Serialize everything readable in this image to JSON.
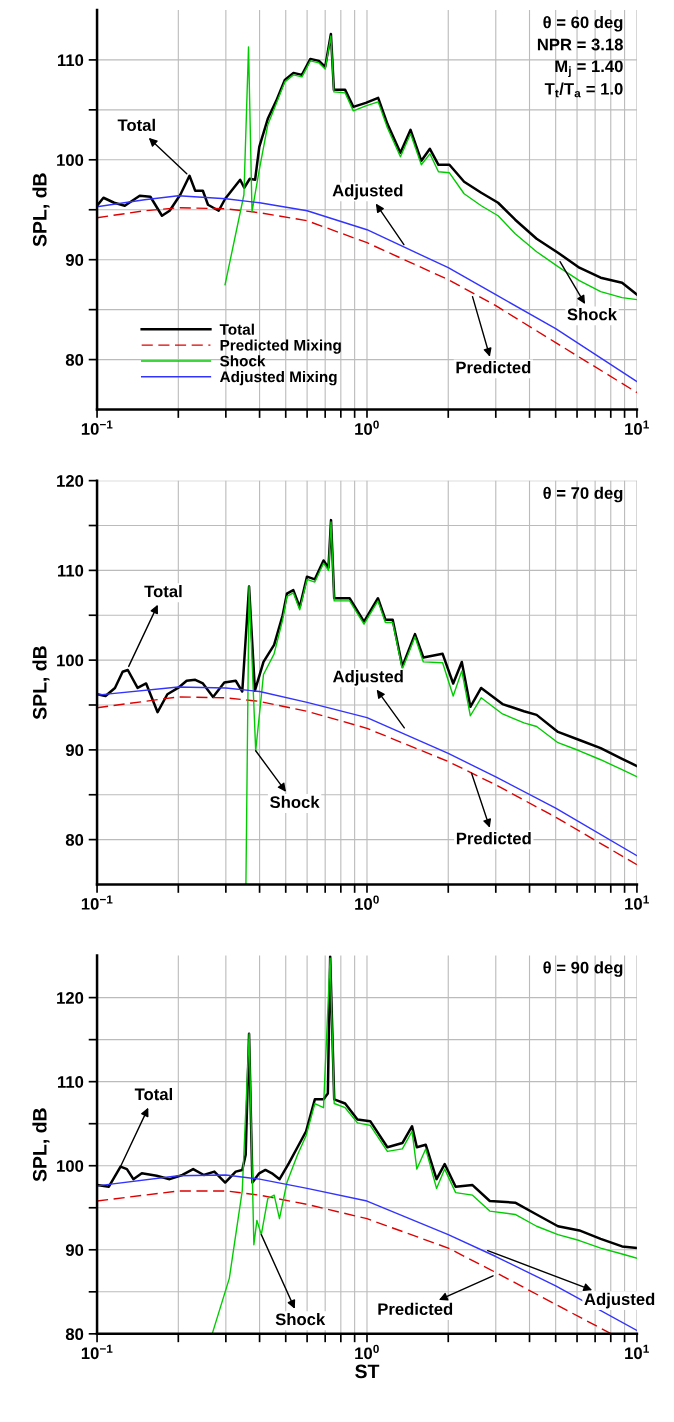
{
  "chart_data": [
    {
      "type": "line",
      "ylabel": "SPL, dB",
      "xlim": [
        0.1,
        10
      ],
      "ylim": [
        75,
        115
      ],
      "log": "x",
      "grid": true,
      "legend": "bottom left",
      "xticks": [
        {
          "value": 0.1,
          "label": "10$^{−1}$"
        },
        {
          "value": 0.2,
          "label": null
        },
        {
          "value": 0.3,
          "label": null
        },
        {
          "value": 0.4,
          "label": null
        },
        {
          "value": 0.5,
          "label": null
        },
        {
          "value": 0.6,
          "label": null
        },
        {
          "value": 0.7,
          "label": null
        },
        {
          "value": 0.8,
          "label": null
        },
        {
          "value": 0.9,
          "label": null
        },
        {
          "value": 1,
          "label": "10$^{0}$"
        },
        {
          "value": 2,
          "label": null
        },
        {
          "value": 3,
          "label": null
        },
        {
          "value": 4,
          "label": null
        },
        {
          "value": 5,
          "label": null
        },
        {
          "value": 6,
          "label": null
        },
        {
          "value": 7,
          "label": null
        },
        {
          "value": 8,
          "label": null
        },
        {
          "value": 9,
          "label": null
        },
        {
          "value": 10,
          "label": "10$^{1}$"
        }
      ],
      "yticks": [
        80,
        {
          "value": 85,
          "label": null
        },
        90,
        {
          "value": 95,
          "label": null
        },
        100,
        {
          "value": 105,
          "label": null
        },
        110
      ],
      "series": [
        {
          "name": "Total",
          "color": "#000000",
          "line_style": "solid",
          "x": [
            0.1,
            0.1056,
            0.1157,
            0.1267,
            0.1439,
            0.1576,
            0.174,
            0.1857,
            0.2034,
            0.22,
            0.231,
            0.2466,
            0.2576,
            0.2822,
            0.2983,
            0.3148,
            0.339,
            0.3509,
            0.368,
            0.385,
            0.399,
            0.429,
            0.461,
            0.496,
            0.534,
            0.574,
            0.617,
            0.664,
            0.7,
            0.735,
            0.754,
            0.83,
            0.89,
            0.99,
            1.1,
            1.19,
            1.33,
            1.45,
            1.59,
            1.71,
            1.84,
            2.02,
            2.29,
            2.65,
            3.06,
            3.54,
            4.25,
            5.1,
            6.12,
            7.34,
            8.81,
            10
          ],
          "values": [
            95.4,
            96.2,
            95.7,
            95.4,
            96.4,
            96.3,
            94.4,
            94.9,
            96.5,
            98.4,
            96.9,
            96.9,
            95.5,
            94.9,
            96.1,
            96.9,
            98.0,
            97.2,
            98.1,
            98.0,
            101.3,
            104.1,
            105.9,
            108.0,
            108.7,
            108.5,
            110.1,
            109.9,
            109.3,
            112.6,
            107.0,
            107.0,
            105.3,
            105.7,
            106.2,
            103.6,
            100.7,
            103.0,
            99.9,
            101.1,
            99.5,
            99.5,
            97.8,
            96.7,
            95.7,
            94.0,
            92.1,
            90.7,
            89.2,
            88.2,
            87.7,
            86.5
          ]
        },
        {
          "name": "Predicted Mixing",
          "color": "#dd0000",
          "line_style": "dashed",
          "x": [
            0.1,
            0.15,
            0.2,
            0.3,
            0.4,
            0.6,
            1,
            2,
            3,
            5,
            10
          ],
          "values": [
            94.2,
            94.9,
            95.2,
            95.1,
            94.7,
            93.9,
            91.7,
            88.0,
            85.4,
            81.7,
            76.7
          ]
        },
        {
          "name": "Shock",
          "color": "#00cc00",
          "line_style": "solid",
          "x": [
            0.298,
            0.35,
            0.364,
            0.375,
            0.399,
            0.429,
            0.461,
            0.496,
            0.534,
            0.574,
            0.617,
            0.664,
            0.7,
            0.735,
            0.754,
            0.83,
            0.89,
            0.99,
            1.1,
            1.19,
            1.33,
            1.45,
            1.59,
            1.71,
            1.84,
            2.02,
            2.29,
            2.65,
            3.06,
            3.54,
            4.25,
            5.1,
            6.12,
            7.34,
            8.81,
            10
          ],
          "values": [
            87.5,
            96.5,
            111.3,
            94.8,
            99.0,
            103.5,
            105.6,
            107.8,
            108.5,
            108.3,
            109.9,
            109.7,
            109.1,
            112.4,
            106.8,
            106.7,
            104.9,
            105.4,
            105.8,
            103.2,
            100.3,
            102.6,
            99.5,
            100.6,
            98.8,
            98.7,
            96.6,
            95.4,
            94.4,
            92.6,
            90.8,
            89.3,
            87.9,
            86.8,
            86.2,
            86.0
          ]
        },
        {
          "name": "Adjusted Mixing",
          "color": "#3333ff",
          "line_style": "solid",
          "x": [
            0.1,
            0.15,
            0.2,
            0.3,
            0.4,
            0.6,
            1,
            2,
            3,
            5,
            10
          ],
          "values": [
            95.3,
            96.0,
            96.4,
            96.1,
            95.7,
            94.9,
            93.0,
            89.2,
            86.5,
            83.1,
            77.8
          ]
        }
      ],
      "annotations": [
        "θ = 60 deg",
        "NPR = 3.18",
        "M$_{j}$ = 1.40",
        "T$_{t}$/T$_{a}$ = 1.0",
        {
          "text": "Total",
          "x": 0.215,
          "y": 98.6
        },
        {
          "text": "Adjusted",
          "x": 1.37,
          "y": 91.5
        },
        {
          "text": "Predicted",
          "x": 2.46,
          "y": 86.3
        },
        {
          "text": "Shock",
          "x": 5.19,
          "y": 89.8
        }
      ]
    },
    {
      "type": "line",
      "ylabel": "SPL, dB",
      "xlim": [
        0.1,
        10
      ],
      "ylim": [
        75,
        120
      ],
      "log": "x",
      "grid": true,
      "xticks": [
        {
          "value": 0.1,
          "label": "10$^{−1}$"
        },
        {
          "value": 0.2,
          "label": null
        },
        {
          "value": 0.3,
          "label": null
        },
        {
          "value": 0.4,
          "label": null
        },
        {
          "value": 0.5,
          "label": null
        },
        {
          "value": 0.6,
          "label": null
        },
        {
          "value": 0.7,
          "label": null
        },
        {
          "value": 0.8,
          "label": null
        },
        {
          "value": 0.9,
          "label": null
        },
        {
          "value": 1,
          "label": "10$^{0}$"
        },
        {
          "value": 2,
          "label": null
        },
        {
          "value": 3,
          "label": null
        },
        {
          "value": 4,
          "label": null
        },
        {
          "value": 5,
          "label": null
        },
        {
          "value": 6,
          "label": null
        },
        {
          "value": 7,
          "label": null
        },
        {
          "value": 8,
          "label": null
        },
        {
          "value": 9,
          "label": null
        },
        {
          "value": 10,
          "label": "10$^{1}$"
        }
      ],
      "yticks": [
        80,
        {
          "value": 85,
          "label": null
        },
        90,
        {
          "value": 95,
          "label": null
        },
        100,
        {
          "value": 105,
          "label": null
        },
        110,
        {
          "value": 115,
          "label": null
        },
        120
      ],
      "series": [
        {
          "color": "#000000",
          "line_style": "solid",
          "x": [
            0.1,
            0.1075,
            0.1165,
            0.1244,
            0.13,
            0.1413,
            0.152,
            0.1676,
            0.1822,
            0.1996,
            0.2147,
            0.2311,
            0.2467,
            0.269,
            0.2961,
            0.3264,
            0.3451,
            0.3657,
            0.3844,
            0.4136,
            0.4528,
            0.487,
            0.5051,
            0.5334,
            0.5633,
            0.5995,
            0.6409,
            0.6902,
            0.72,
            0.7358,
            0.756,
            0.862,
            0.975,
            1.098,
            1.17,
            1.245,
            1.352,
            1.506,
            1.617,
            1.906,
            2.086,
            2.245,
            2.415,
            2.648,
            3.177,
            3.815,
            4.25,
            5.1,
            6.12,
            7.34,
            8.81,
            10
          ],
          "values": [
            96.2,
            96.0,
            96.9,
            98.7,
            98.9,
            96.9,
            97.4,
            94.2,
            96.2,
            96.9,
            97.7,
            97.8,
            97.4,
            95.9,
            97.5,
            97.7,
            96.5,
            108.2,
            96.6,
            99.8,
            101.7,
            105.0,
            107.4,
            107.8,
            105.9,
            109.3,
            109.0,
            111.1,
            110.3,
            115.6,
            106.9,
            106.9,
            104.3,
            106.9,
            104.5,
            104.5,
            99.3,
            102.9,
            100.3,
            100.7,
            97.4,
            99.8,
            94.8,
            96.9,
            95.1,
            94.3,
            93.9,
            92.0,
            91.1,
            90.2,
            89.0,
            88.2
          ]
        },
        {
          "color": "#dd0000",
          "line_style": "dashed",
          "x": [
            0.1,
            0.2,
            0.3,
            0.4,
            0.6,
            1,
            2,
            3,
            5,
            10
          ],
          "values": [
            94.7,
            95.9,
            95.8,
            95.4,
            94.3,
            92.4,
            88.7,
            86.1,
            82.5,
            77.2
          ]
        },
        {
          "color": "#00cc00",
          "line_style": "solid",
          "x": [
            0.356,
            0.3657,
            0.387,
            0.4136,
            0.4528,
            0.487,
            0.5051,
            0.5334,
            0.5633,
            0.5995,
            0.6409,
            0.6902,
            0.72,
            0.7358,
            0.756,
            0.862,
            0.975,
            1.098,
            1.17,
            1.245,
            1.352,
            1.506,
            1.617,
            1.906,
            2.086,
            2.245,
            2.415,
            2.648,
            3.177,
            3.815,
            4.25,
            5.1,
            6.12,
            7.34,
            8.81,
            10
          ],
          "values": [
            75.0,
            108.2,
            89.9,
            98.4,
            100.7,
            104.5,
            107.1,
            107.5,
            105.6,
            109.0,
            108.7,
            110.8,
            110.0,
            115.4,
            106.6,
            106.6,
            104.0,
            106.6,
            104.2,
            104.2,
            99.0,
            102.6,
            99.8,
            99.7,
            96.0,
            98.8,
            93.8,
            95.8,
            94.0,
            93.0,
            92.6,
            90.8,
            89.9,
            88.9,
            87.8,
            87.0
          ]
        },
        {
          "color": "#3333ff",
          "line_style": "solid",
          "x": [
            0.1,
            0.2,
            0.3,
            0.4,
            0.6,
            1,
            2,
            3,
            5,
            10
          ],
          "values": [
            96.1,
            97.0,
            96.9,
            96.5,
            95.3,
            93.6,
            89.6,
            87.0,
            83.5,
            78.2
          ]
        }
      ],
      "annotations": [
        "θ = 70 deg",
        {
          "text": "Total",
          "x": 0.131,
          "y": 99.3
        },
        {
          "text": "Adjusted",
          "x": 1.375,
          "y": 92.45
        },
        {
          "text": "Shock",
          "x": 0.387,
          "y": 89.9
        },
        {
          "text": "Predicted",
          "x": 2.44,
          "y": 87.4
        }
      ]
    },
    {
      "type": "line",
      "xlabel": "ST",
      "ylabel": "SPL, dB",
      "xlim": [
        0.1,
        10
      ],
      "ylim": [
        80,
        125
      ],
      "log": "x",
      "grid": true,
      "xticks": [
        {
          "value": 0.1,
          "label": "10$^{−1}$"
        },
        {
          "value": 0.2,
          "label": null
        },
        {
          "value": 0.3,
          "label": null
        },
        {
          "value": 0.4,
          "label": null
        },
        {
          "value": 0.5,
          "label": null
        },
        {
          "value": 0.6,
          "label": null
        },
        {
          "value": 0.7,
          "label": null
        },
        {
          "value": 0.8,
          "label": null
        },
        {
          "value": 0.9,
          "label": null
        },
        {
          "value": 1,
          "label": "10$^{0}$"
        },
        {
          "value": 2,
          "label": null
        },
        {
          "value": 3,
          "label": null
        },
        {
          "value": 4,
          "label": null
        },
        {
          "value": 5,
          "label": null
        },
        {
          "value": 6,
          "label": null
        },
        {
          "value": 7,
          "label": null
        },
        {
          "value": 8,
          "label": null
        },
        {
          "value": 9,
          "label": null
        },
        {
          "value": 10,
          "label": "10$^{1}$"
        }
      ],
      "yticks": [
        80,
        {
          "value": 85,
          "label": null
        },
        90,
        {
          "value": 95,
          "label": null
        },
        100,
        {
          "value": 105,
          "label": null
        },
        110,
        {
          "value": 115,
          "label": null
        },
        120
      ],
      "series": [
        {
          "color": "#000000",
          "line_style": "solid",
          "x": [
            0.1,
            0.1106,
            0.1222,
            0.129,
            0.1363,
            0.1465,
            0.1663,
            0.1857,
            0.2071,
            0.227,
            0.2486,
            0.272,
            0.2983,
            0.3264,
            0.3451,
            0.3553,
            0.3657,
            0.3762,
            0.3986,
            0.4204,
            0.4445,
            0.4745,
            0.5138,
            0.5527,
            0.5948,
            0.6409,
            0.6902,
            0.716,
            0.7305,
            0.756,
            0.83,
            0.922,
            1.028,
            1.19,
            1.352,
            1.469,
            1.53,
            1.65,
            1.81,
            1.94,
            2.13,
            2.46,
            2.85,
            3.54,
            4.25,
            5.1,
            6.12,
            7.34,
            8.81,
            10
          ],
          "values": [
            97.7,
            97.5,
            99.9,
            99.6,
            98.4,
            99.1,
            98.8,
            98.4,
            98.9,
            99.6,
            98.9,
            99.3,
            98.0,
            99.3,
            99.5,
            101.3,
            115.7,
            98.0,
            99.1,
            99.5,
            99.1,
            98.4,
            100.3,
            102.2,
            104.1,
            107.9,
            107.9,
            108.6,
            124.9,
            107.9,
            107.4,
            105.5,
            105.3,
            102.2,
            102.7,
            104.7,
            102.2,
            102.5,
            98.4,
            100.2,
            97.5,
            97.7,
            95.8,
            95.6,
            94.2,
            92.8,
            92.3,
            91.3,
            90.4,
            90.2
          ]
        },
        {
          "color": "#dd0000",
          "line_style": "dashed",
          "x": [
            0.1,
            0.2,
            0.3,
            0.4,
            0.6,
            1,
            2,
            3,
            5,
            8.04
          ],
          "values": [
            95.8,
            97.0,
            97.0,
            96.5,
            95.4,
            93.7,
            90.2,
            87.3,
            83.5,
            80.0
          ]
        },
        {
          "color": "#00cc00",
          "line_style": "solid",
          "x": [
            0.267,
            0.309,
            0.345,
            0.366,
            0.381,
            0.391,
            0.406,
            0.429,
            0.453,
            0.474,
            0.505,
            0.553,
            0.595,
            0.641,
            0.69,
            0.73,
            0.756,
            0.83,
            0.922,
            1.028,
            1.19,
            1.352,
            1.469,
            1.53,
            1.65,
            1.81,
            1.94,
            2.13,
            2.46,
            2.85,
            3.54,
            4.25,
            5.1,
            6.12,
            7.34,
            8.81,
            10
          ],
          "values": [
            80.0,
            86.6,
            97.0,
            115.7,
            90.6,
            93.5,
            91.8,
            96.1,
            96.5,
            93.7,
            98.0,
            101.3,
            103.6,
            107.4,
            106.9,
            124.7,
            107.4,
            106.9,
            105.1,
            104.8,
            101.7,
            102.0,
            104.1,
            99.6,
            102.0,
            97.3,
            99.6,
            96.8,
            96.5,
            94.6,
            94.2,
            92.8,
            91.8,
            91.1,
            90.2,
            89.5,
            89.0
          ]
        },
        {
          "color": "#3333ff",
          "line_style": "solid",
          "x": [
            0.1,
            0.2,
            0.3,
            0.4,
            0.6,
            1,
            2,
            3,
            5,
            10
          ],
          "values": [
            97.6,
            98.8,
            98.9,
            98.4,
            97.3,
            95.8,
            91.8,
            89.2,
            85.7,
            80.4
          ]
        }
      ],
      "annotations": [
        "θ = 90 deg",
        {
          "text": "Total",
          "x": 0.1222,
          "y": 99.9
        },
        {
          "text": "Shock",
          "x": 0.406,
          "y": 91.8
        },
        {
          "text": "Adjusted",
          "x": 2.8,
          "y": 89.9
        },
        {
          "text": "Predicted",
          "x": 2.93,
          "y": 86.9
        }
      ]
    }
  ]
}
